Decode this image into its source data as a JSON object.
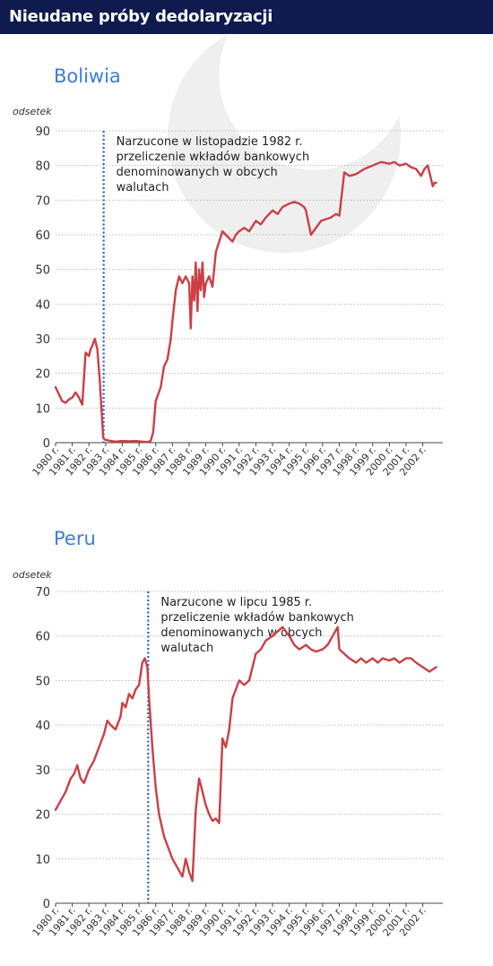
{
  "header": {
    "title": "Nieudane próby dedolaryzacji"
  },
  "colors": {
    "header_bg": "#0f1a4f",
    "line": "#cc3f45",
    "event_line": "#2d5ec8",
    "title": "#3b7ddd",
    "grid": "#bbbbbb",
    "logo": "#ececec"
  },
  "chart_data": [
    {
      "type": "line",
      "title": "Boliwia",
      "ylabel": "odsetek",
      "ylim": [
        0,
        90
      ],
      "yticks": [
        0,
        10,
        20,
        30,
        40,
        50,
        60,
        70,
        80,
        90
      ],
      "xlim": [
        1980.0,
        2003.2
      ],
      "xtick_labels": [
        "1980 r.",
        "1981 r.",
        "1982 r.",
        "1983 r.",
        "1984 r.",
        "1985 r.",
        "1986 r.",
        "1987 r.",
        "1988 r.",
        "1989 r.",
        "1990 r.",
        "1991 r.",
        "1992 r.",
        "1993 r.",
        "1994 r.",
        "1995 r.",
        "1996 r.",
        "1997 r.",
        "1998 r.",
        "1999 r.",
        "2000 r.",
        "2001 r.",
        "2002 r."
      ],
      "event": {
        "x": 1982.88,
        "text": [
          "Narzucone w listopadzie 1982 r.",
          "przeliczenie wkładów bankowych",
          "denominowanych w obcych",
          "walutach"
        ]
      },
      "series": [
        {
          "x": [
            1980.0,
            1980.2,
            1980.4,
            1980.6,
            1980.8,
            1981.0,
            1981.2,
            1981.4,
            1981.6,
            1981.8,
            1982.0,
            1982.1,
            1982.2,
            1982.35,
            1982.5,
            1982.65,
            1982.85,
            1982.92,
            1983.0,
            1983.3,
            1983.6,
            1984.0,
            1984.4,
            1984.8,
            1985.2,
            1985.5,
            1985.7,
            1985.85,
            1986.0,
            1986.3,
            1986.5,
            1986.7,
            1986.9,
            1987.0,
            1987.2,
            1987.4,
            1987.6,
            1987.8,
            1988.0,
            1988.1,
            1988.2,
            1988.3,
            1988.4,
            1988.5,
            1988.6,
            1988.7,
            1988.8,
            1988.9,
            1989.0,
            1989.2,
            1989.4,
            1989.6,
            1989.8,
            1990.0,
            1990.2,
            1990.4,
            1990.6,
            1990.8,
            1991.0,
            1991.3,
            1991.6,
            1992.0,
            1992.3,
            1992.6,
            1993.0,
            1993.3,
            1993.6,
            1994.0,
            1994.3,
            1994.6,
            1994.9,
            1995.0,
            1995.3,
            1995.6,
            1995.9,
            1996.2,
            1996.5,
            1996.8,
            1997.0,
            1997.3,
            1997.6,
            1998.0,
            1998.5,
            1999.0,
            1999.5,
            2000.0,
            2000.3,
            2000.6,
            2001.0,
            2001.3,
            2001.6,
            2001.9,
            2002.1,
            2002.3,
            2002.5,
            2002.6,
            2002.7,
            2002.8
          ],
          "values": [
            16,
            14,
            12,
            11.5,
            12.5,
            13,
            14.5,
            13,
            11,
            26,
            25,
            27,
            28,
            30,
            27,
            18,
            1.5,
            1,
            0.8,
            0.5,
            0.3,
            0.5,
            0.4,
            0.5,
            0.3,
            0.2,
            0.5,
            3,
            12,
            16,
            22,
            24,
            30,
            35,
            44,
            48,
            46,
            48,
            46,
            33,
            48,
            41,
            52,
            38,
            50,
            44,
            52,
            42,
            46,
            48,
            45,
            55,
            58,
            61,
            60,
            59,
            58,
            60,
            61,
            62,
            61,
            64,
            63,
            65,
            67,
            66,
            68,
            69,
            69.5,
            69,
            68,
            67,
            60,
            62,
            64,
            64.5,
            65,
            66,
            65.5,
            78,
            77,
            77.5,
            79,
            80,
            81,
            80.5,
            81,
            80,
            80.5,
            79.5,
            79,
            77,
            79,
            80,
            76,
            74,
            75,
            75
          ]
        }
      ]
    },
    {
      "type": "line",
      "title": "Peru",
      "ylabel": "odsetek",
      "ylim": [
        0,
        70
      ],
      "yticks": [
        0,
        10,
        20,
        30,
        40,
        50,
        60,
        70
      ],
      "xlim": [
        1980.0,
        2003.2
      ],
      "xtick_labels": [
        "1980 r.",
        "1981 r.",
        "1982 r.",
        "1983 r.",
        "1984 r.",
        "1985 r.",
        "1986 r.",
        "1987 r.",
        "1988 r.",
        "1989 r.",
        "1990 r.",
        "1991 r.",
        "1992 r.",
        "1993 r.",
        "1994 r.",
        "1995 r.",
        "1996 r.",
        "1997 r.",
        "1998 r.",
        "1999 r.",
        "2000 r.",
        "2001 r.",
        "2002 r."
      ],
      "event": {
        "x": 1985.55,
        "text": [
          "Narzucone w lipcu 1985 r.",
          "przeliczenie wkładów bankowych",
          "denominowanych w obcych",
          "walutach"
        ]
      },
      "series": [
        {
          "x": [
            1980.0,
            1980.3,
            1980.6,
            1980.9,
            1981.1,
            1981.3,
            1981.5,
            1981.7,
            1982.0,
            1982.3,
            1982.6,
            1982.9,
            1983.1,
            1983.3,
            1983.6,
            1983.9,
            1984.0,
            1984.2,
            1984.4,
            1984.6,
            1984.8,
            1985.0,
            1985.2,
            1985.35,
            1985.5,
            1985.6,
            1985.8,
            1986.0,
            1986.2,
            1986.5,
            1986.8,
            1987.0,
            1987.3,
            1987.6,
            1987.8,
            1988.0,
            1988.2,
            1988.4,
            1988.6,
            1988.8,
            1989.0,
            1989.2,
            1989.4,
            1989.6,
            1989.8,
            1990.0,
            1990.2,
            1990.4,
            1990.6,
            1990.8,
            1991.0,
            1991.3,
            1991.6,
            1992.0,
            1992.3,
            1992.6,
            1993.0,
            1993.3,
            1993.6,
            1994.0,
            1994.3,
            1994.6,
            1995.0,
            1995.3,
            1995.6,
            1996.0,
            1996.3,
            1996.6,
            1996.9,
            1997.0,
            1997.3,
            1997.6,
            1998.0,
            1998.3,
            1998.6,
            1999.0,
            1999.3,
            1999.6,
            2000.0,
            2000.3,
            2000.6,
            2001.0,
            2001.3,
            2001.6,
            2002.0,
            2002.2,
            2002.4,
            2002.6,
            2002.8
          ],
          "values": [
            21,
            23,
            25,
            28,
            29,
            31,
            28,
            27,
            30,
            32,
            35,
            38,
            41,
            40,
            39,
            42,
            45,
            44,
            47,
            46,
            48,
            49,
            54,
            55,
            53,
            46,
            35,
            26,
            20,
            15,
            12,
            10,
            8,
            6,
            10,
            7,
            5,
            21,
            28,
            25,
            22,
            20,
            18.5,
            19,
            18,
            37,
            35,
            39,
            46,
            48,
            50,
            49,
            50,
            56,
            57,
            59,
            60,
            61,
            62,
            60,
            58,
            57,
            58,
            57,
            56.5,
            57,
            58,
            60,
            62,
            57,
            56,
            55,
            54,
            55,
            54,
            55,
            54,
            55,
            54.5,
            55,
            54,
            55,
            55,
            54,
            53,
            52.5,
            52,
            52.5,
            53
          ]
        }
      ]
    }
  ]
}
